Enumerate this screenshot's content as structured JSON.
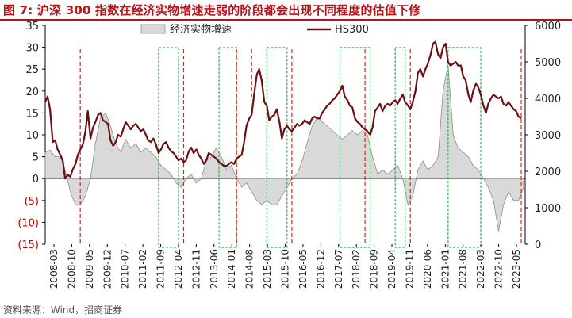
{
  "header": {
    "title": "图 7:  沪深 300 指数在经济实物增速走弱的阶段都会出现不同程度的估值下修",
    "source": "资料来源：Wind，招商证券"
  },
  "colors": {
    "title": "#b5121b",
    "gdp_fill": "#d9d9d9",
    "gdp_stroke": "#8c8c8c",
    "hs300_line": "#6b0f12",
    "red_dashed": "#e0201b",
    "green_dashed": "#2fb04a",
    "negative_tick": "#c00000"
  },
  "chart_data": {
    "type": "line",
    "legend": {
      "placement": "top-center"
    },
    "x_tick_labels": [
      "2008-03",
      "2008-10",
      "2009-05",
      "2009-12",
      "2010-07",
      "2011-02",
      "2011-09",
      "2012-04",
      "2012-11",
      "2013-06",
      "2014-01",
      "2014-08",
      "2015-03",
      "2015-10",
      "2016-05",
      "2016-12",
      "2017-07",
      "2018-02",
      "2018-09",
      "2019-04",
      "2019-11",
      "2020-06",
      "2021-01",
      "2021-08",
      "2022-03",
      "2022-10",
      "2023-05"
    ],
    "y_left": {
      "min": -15,
      "max": 35,
      "ticks": [
        "35",
        "30",
        "25",
        "20",
        "15",
        "10",
        "5",
        "0",
        "(5)",
        "(10)",
        "(15)"
      ]
    },
    "y_right": {
      "min": 0,
      "max": 6000,
      "ticks": [
        "6000",
        "5000",
        "4000",
        "3000",
        "2000",
        "1000",
        "0"
      ]
    },
    "series": [
      {
        "name": "经济实物增速",
        "type": "area",
        "axis": "left",
        "points": [
          [
            2008.17,
            6
          ],
          [
            2008.33,
            6.5
          ],
          [
            2008.5,
            5
          ],
          [
            2008.67,
            5
          ],
          [
            2008.83,
            2
          ],
          [
            2009.0,
            -3
          ],
          [
            2009.17,
            -6
          ],
          [
            2009.33,
            -6
          ],
          [
            2009.5,
            -4
          ],
          [
            2009.67,
            0
          ],
          [
            2009.83,
            8
          ],
          [
            2010.0,
            14
          ],
          [
            2010.17,
            15
          ],
          [
            2010.33,
            12
          ],
          [
            2010.5,
            8
          ],
          [
            2010.67,
            6
          ],
          [
            2010.83,
            9
          ],
          [
            2011.0,
            7
          ],
          [
            2011.17,
            8
          ],
          [
            2011.33,
            6
          ],
          [
            2011.5,
            7
          ],
          [
            2011.67,
            6
          ],
          [
            2011.83,
            5
          ],
          [
            2012.0,
            3
          ],
          [
            2012.17,
            2
          ],
          [
            2012.33,
            1
          ],
          [
            2012.5,
            -1
          ],
          [
            2012.67,
            -2
          ],
          [
            2012.83,
            0
          ],
          [
            2013.0,
            1
          ],
          [
            2013.17,
            -1
          ],
          [
            2013.33,
            0
          ],
          [
            2013.5,
            4
          ],
          [
            2013.67,
            5
          ],
          [
            2013.83,
            7
          ],
          [
            2014.0,
            5
          ],
          [
            2014.17,
            2
          ],
          [
            2014.33,
            3
          ],
          [
            2014.5,
            0
          ],
          [
            2014.67,
            -2
          ],
          [
            2014.83,
            -1
          ],
          [
            2015.0,
            -3
          ],
          [
            2015.17,
            -5
          ],
          [
            2015.33,
            -6
          ],
          [
            2015.5,
            -5
          ],
          [
            2015.67,
            -6
          ],
          [
            2015.83,
            -6
          ],
          [
            2016.0,
            -4
          ],
          [
            2016.17,
            -2
          ],
          [
            2016.33,
            0
          ],
          [
            2016.5,
            1
          ],
          [
            2016.67,
            4
          ],
          [
            2016.83,
            8
          ],
          [
            2017.0,
            12
          ],
          [
            2017.17,
            14
          ],
          [
            2017.33,
            13
          ],
          [
            2017.5,
            12
          ],
          [
            2017.67,
            11
          ],
          [
            2017.83,
            10
          ],
          [
            2018.0,
            9
          ],
          [
            2018.17,
            10
          ],
          [
            2018.33,
            11
          ],
          [
            2018.5,
            10
          ],
          [
            2018.67,
            11
          ],
          [
            2018.83,
            10
          ],
          [
            2019.0,
            5
          ],
          [
            2019.17,
            1
          ],
          [
            2019.33,
            2
          ],
          [
            2019.5,
            1
          ],
          [
            2019.67,
            2
          ],
          [
            2019.83,
            3
          ],
          [
            2020.0,
            0
          ],
          [
            2020.17,
            -6
          ],
          [
            2020.33,
            -4
          ],
          [
            2020.5,
            2
          ],
          [
            2020.67,
            4
          ],
          [
            2020.83,
            2
          ],
          [
            2021.0,
            3
          ],
          [
            2021.17,
            5
          ],
          [
            2021.33,
            20
          ],
          [
            2021.5,
            26
          ],
          [
            2021.67,
            10
          ],
          [
            2021.83,
            7
          ],
          [
            2022.0,
            6
          ],
          [
            2022.17,
            5
          ],
          [
            2022.33,
            3
          ],
          [
            2022.5,
            2
          ],
          [
            2022.67,
            0
          ],
          [
            2022.83,
            -2
          ],
          [
            2023.0,
            -5
          ],
          [
            2023.17,
            -12
          ],
          [
            2023.33,
            -6
          ],
          [
            2023.5,
            -3
          ],
          [
            2023.67,
            -5
          ],
          [
            2023.83,
            -5
          ],
          [
            2024.0,
            -2
          ]
        ]
      },
      {
        "name": "HS300",
        "type": "line",
        "axis": "right",
        "points": [
          [
            2008.17,
            3900
          ],
          [
            2008.25,
            4050
          ],
          [
            2008.33,
            3700
          ],
          [
            2008.42,
            2800
          ],
          [
            2008.5,
            2850
          ],
          [
            2008.58,
            2600
          ],
          [
            2008.67,
            2450
          ],
          [
            2008.75,
            2300
          ],
          [
            2008.83,
            1800
          ],
          [
            2008.92,
            1900
          ],
          [
            2009.0,
            1850
          ],
          [
            2009.08,
            2050
          ],
          [
            2009.17,
            2200
          ],
          [
            2009.25,
            2450
          ],
          [
            2009.33,
            2600
          ],
          [
            2009.42,
            2750
          ],
          [
            2009.5,
            3100
          ],
          [
            2009.58,
            3650
          ],
          [
            2009.67,
            2900
          ],
          [
            2009.75,
            3200
          ],
          [
            2009.83,
            3350
          ],
          [
            2009.92,
            3550
          ],
          [
            2010.0,
            3600
          ],
          [
            2010.08,
            3400
          ],
          [
            2010.17,
            3350
          ],
          [
            2010.25,
            3300
          ],
          [
            2010.33,
            2850
          ],
          [
            2010.42,
            2700
          ],
          [
            2010.5,
            2800
          ],
          [
            2010.58,
            3000
          ],
          [
            2010.67,
            2950
          ],
          [
            2010.75,
            3150
          ],
          [
            2010.83,
            3350
          ],
          [
            2010.92,
            3250
          ],
          [
            2011.0,
            3150
          ],
          [
            2011.08,
            3250
          ],
          [
            2011.17,
            3300
          ],
          [
            2011.25,
            3200
          ],
          [
            2011.33,
            3100
          ],
          [
            2011.42,
            3150
          ],
          [
            2011.5,
            3000
          ],
          [
            2011.58,
            2850
          ],
          [
            2011.67,
            2800
          ],
          [
            2011.75,
            2900
          ],
          [
            2011.83,
            2750
          ],
          [
            2011.92,
            2500
          ],
          [
            2012.0,
            2600
          ],
          [
            2012.08,
            2750
          ],
          [
            2012.17,
            2800
          ],
          [
            2012.25,
            2650
          ],
          [
            2012.33,
            2550
          ],
          [
            2012.42,
            2500
          ],
          [
            2012.5,
            2400
          ],
          [
            2012.58,
            2300
          ],
          [
            2012.67,
            2350
          ],
          [
            2012.75,
            2250
          ],
          [
            2012.83,
            2300
          ],
          [
            2012.92,
            2550
          ],
          [
            2013.0,
            2650
          ],
          [
            2013.08,
            2500
          ],
          [
            2013.17,
            2600
          ],
          [
            2013.25,
            2450
          ],
          [
            2013.33,
            2350
          ],
          [
            2013.42,
            2200
          ],
          [
            2013.5,
            2300
          ],
          [
            2013.58,
            2500
          ],
          [
            2013.67,
            2450
          ],
          [
            2013.75,
            2400
          ],
          [
            2013.83,
            2350
          ],
          [
            2013.92,
            2250
          ],
          [
            2014.0,
            2200
          ],
          [
            2014.08,
            2150
          ],
          [
            2014.17,
            2150
          ],
          [
            2014.25,
            2200
          ],
          [
            2014.33,
            2250
          ],
          [
            2014.42,
            2200
          ],
          [
            2014.5,
            2350
          ],
          [
            2014.58,
            2400
          ],
          [
            2014.67,
            2450
          ],
          [
            2014.75,
            2800
          ],
          [
            2014.83,
            3250
          ],
          [
            2014.92,
            3450
          ],
          [
            2015.0,
            3550
          ],
          [
            2015.08,
            4100
          ],
          [
            2015.17,
            4650
          ],
          [
            2015.25,
            4800
          ],
          [
            2015.33,
            4500
          ],
          [
            2015.42,
            3900
          ],
          [
            2015.5,
            3800
          ],
          [
            2015.58,
            3400
          ],
          [
            2015.67,
            3500
          ],
          [
            2015.75,
            3550
          ],
          [
            2015.83,
            3700
          ],
          [
            2015.92,
            3350
          ],
          [
            2016.0,
            2900
          ],
          [
            2016.08,
            3150
          ],
          [
            2016.17,
            3250
          ],
          [
            2016.25,
            3150
          ],
          [
            2016.33,
            3100
          ],
          [
            2016.42,
            3200
          ],
          [
            2016.5,
            3300
          ],
          [
            2016.58,
            3250
          ],
          [
            2016.67,
            3300
          ],
          [
            2016.75,
            3400
          ],
          [
            2016.83,
            3350
          ],
          [
            2016.92,
            3300
          ],
          [
            2017.0,
            3450
          ],
          [
            2017.08,
            3500
          ],
          [
            2017.17,
            3450
          ],
          [
            2017.25,
            3450
          ],
          [
            2017.33,
            3600
          ],
          [
            2017.42,
            3700
          ],
          [
            2017.5,
            3800
          ],
          [
            2017.58,
            3850
          ],
          [
            2017.67,
            3950
          ],
          [
            2017.75,
            4000
          ],
          [
            2017.83,
            4100
          ],
          [
            2017.92,
            4200
          ],
          [
            2018.0,
            4350
          ],
          [
            2018.08,
            4050
          ],
          [
            2018.17,
            3950
          ],
          [
            2018.25,
            3800
          ],
          [
            2018.33,
            3750
          ],
          [
            2018.42,
            3450
          ],
          [
            2018.5,
            3350
          ],
          [
            2018.58,
            3300
          ],
          [
            2018.67,
            3200
          ],
          [
            2018.75,
            3150
          ],
          [
            2018.83,
            3100
          ],
          [
            2018.92,
            3000
          ],
          [
            2019.0,
            3200
          ],
          [
            2019.08,
            3650
          ],
          [
            2019.17,
            3750
          ],
          [
            2019.25,
            3850
          ],
          [
            2019.33,
            3650
          ],
          [
            2019.42,
            3800
          ],
          [
            2019.5,
            3850
          ],
          [
            2019.58,
            3800
          ],
          [
            2019.67,
            3900
          ],
          [
            2019.75,
            3950
          ],
          [
            2019.83,
            3850
          ],
          [
            2019.92,
            4000
          ],
          [
            2020.0,
            4100
          ],
          [
            2020.08,
            3900
          ],
          [
            2020.17,
            3800
          ],
          [
            2020.25,
            3700
          ],
          [
            2020.33,
            3900
          ],
          [
            2020.42,
            4200
          ],
          [
            2020.5,
            4700
          ],
          [
            2020.58,
            4800
          ],
          [
            2020.67,
            4600
          ],
          [
            2020.75,
            4800
          ],
          [
            2020.83,
            4950
          ],
          [
            2020.92,
            5200
          ],
          [
            2021.0,
            5500
          ],
          [
            2021.08,
            5550
          ],
          [
            2021.17,
            5200
          ],
          [
            2021.25,
            5100
          ],
          [
            2021.33,
            5400
          ],
          [
            2021.42,
            5500
          ],
          [
            2021.5,
            5000
          ],
          [
            2021.58,
            4900
          ],
          [
            2021.67,
            4950
          ],
          [
            2021.75,
            5000
          ],
          [
            2021.83,
            4900
          ],
          [
            2021.92,
            4900
          ],
          [
            2022.0,
            4600
          ],
          [
            2022.08,
            4500
          ],
          [
            2022.17,
            4100
          ],
          [
            2022.25,
            3900
          ],
          [
            2022.33,
            4200
          ],
          [
            2022.42,
            4400
          ],
          [
            2022.5,
            4300
          ],
          [
            2022.58,
            4100
          ],
          [
            2022.67,
            3800
          ],
          [
            2022.75,
            3600
          ],
          [
            2022.83,
            3850
          ],
          [
            2022.92,
            4000
          ],
          [
            2023.0,
            4100
          ],
          [
            2023.08,
            4050
          ],
          [
            2023.17,
            4000
          ],
          [
            2023.25,
            4050
          ],
          [
            2023.33,
            3850
          ],
          [
            2023.42,
            3800
          ],
          [
            2023.5,
            3900
          ],
          [
            2023.58,
            3800
          ],
          [
            2023.67,
            3700
          ],
          [
            2023.75,
            3650
          ],
          [
            2023.83,
            3500
          ],
          [
            2023.92,
            3450
          ]
        ]
      }
    ],
    "red_dashed_dates": [
      2009.33,
      2012.75,
      2014.5,
      2016.33,
      2018.75,
      2020.25,
      2023.92
    ],
    "red_dashed_partial_date": 2015.0,
    "green_boxes": [
      [
        2011.92,
        2012.58
      ],
      [
        2013.92,
        2014.5
      ],
      [
        2015.5,
        2016.17
      ],
      [
        2017.92,
        2018.92
      ],
      [
        2019.75,
        2020.08
      ],
      [
        2021.5,
        2022.58
      ]
    ]
  }
}
